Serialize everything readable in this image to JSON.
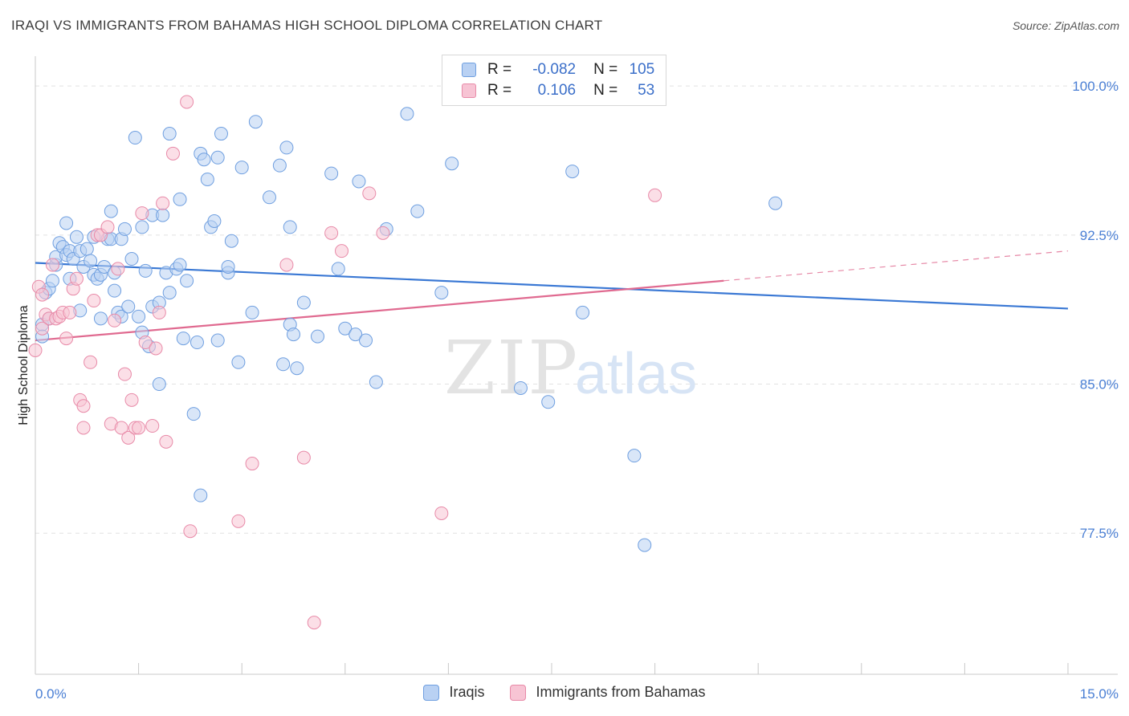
{
  "title": "IRAQI VS IMMIGRANTS FROM BAHAMAS HIGH SCHOOL DIPLOMA CORRELATION CHART",
  "source": "Source: ZipAtlas.com",
  "watermark": {
    "zip": "ZIP",
    "atlas": "atlas"
  },
  "legend": {
    "r_label": "R =",
    "n_label": "N =",
    "rows": [
      {
        "r": "-0.082",
        "n": "105",
        "color": "#6f9fe0",
        "fill": "#b9d1f3"
      },
      {
        "r": "0.106",
        "n": "53",
        "color": "#e88aa8",
        "fill": "#f7c4d4"
      }
    ]
  },
  "chart_data": {
    "type": "scatter",
    "title": "IRAQI VS IMMIGRANTS FROM BAHAMAS HIGH SCHOOL DIPLOMA CORRELATION CHART",
    "xlabel": "",
    "ylabel": "High School Diploma",
    "xlim": [
      0,
      15
    ],
    "ylim": [
      70.4,
      101.5
    ],
    "x_tick_labels": [
      "0.0%",
      "15.0%"
    ],
    "y_ticks": [
      77.5,
      85.0,
      92.5,
      100.0
    ],
    "y_tick_labels": [
      "77.5%",
      "85.0%",
      "92.5%",
      "100.0%"
    ],
    "grid": "horizontal dashed",
    "legend_position": "top-center",
    "series": [
      {
        "name": "Iraqis",
        "color": "#3a78d4",
        "fill": "#b9d1f3",
        "trend": {
          "x": [
            0.0,
            15.0
          ],
          "y": [
            91.1,
            88.8
          ]
        },
        "points": [
          [
            0.1,
            88.0
          ],
          [
            0.1,
            87.4
          ],
          [
            0.15,
            89.6
          ],
          [
            0.2,
            89.8
          ],
          [
            0.2,
            88.3
          ],
          [
            0.25,
            90.2
          ],
          [
            0.3,
            91.0
          ],
          [
            0.3,
            91.4
          ],
          [
            0.35,
            92.1
          ],
          [
            0.4,
            91.9
          ],
          [
            0.45,
            91.5
          ],
          [
            0.45,
            93.1
          ],
          [
            0.5,
            91.7
          ],
          [
            0.5,
            90.3
          ],
          [
            0.55,
            91.3
          ],
          [
            0.6,
            92.4
          ],
          [
            0.65,
            91.7
          ],
          [
            0.65,
            88.7
          ],
          [
            0.7,
            90.9
          ],
          [
            0.75,
            91.8
          ],
          [
            0.8,
            91.2
          ],
          [
            0.85,
            92.4
          ],
          [
            0.85,
            90.5
          ],
          [
            0.9,
            90.3
          ],
          [
            0.95,
            90.5
          ],
          [
            0.95,
            88.3
          ],
          [
            1.0,
            90.9
          ],
          [
            1.05,
            92.3
          ],
          [
            1.1,
            93.7
          ],
          [
            1.1,
            92.3
          ],
          [
            1.15,
            89.7
          ],
          [
            1.15,
            90.6
          ],
          [
            1.2,
            88.6
          ],
          [
            1.25,
            92.3
          ],
          [
            1.25,
            88.4
          ],
          [
            1.3,
            92.8
          ],
          [
            1.35,
            88.9
          ],
          [
            1.4,
            91.3
          ],
          [
            1.45,
            97.4
          ],
          [
            1.5,
            88.4
          ],
          [
            1.55,
            92.9
          ],
          [
            1.55,
            87.6
          ],
          [
            1.6,
            90.7
          ],
          [
            1.65,
            86.9
          ],
          [
            1.7,
            93.5
          ],
          [
            1.7,
            88.9
          ],
          [
            1.8,
            89.1
          ],
          [
            1.8,
            85.0
          ],
          [
            1.85,
            93.5
          ],
          [
            1.9,
            90.6
          ],
          [
            1.95,
            89.6
          ],
          [
            1.95,
            97.6
          ],
          [
            2.05,
            90.8
          ],
          [
            2.1,
            94.3
          ],
          [
            2.1,
            91.0
          ],
          [
            2.15,
            87.3
          ],
          [
            2.2,
            90.2
          ],
          [
            2.3,
            83.5
          ],
          [
            2.35,
            87.1
          ],
          [
            2.4,
            79.4
          ],
          [
            2.4,
            96.6
          ],
          [
            2.45,
            96.3
          ],
          [
            2.5,
            95.3
          ],
          [
            2.55,
            92.9
          ],
          [
            2.6,
            93.2
          ],
          [
            2.65,
            96.4
          ],
          [
            2.65,
            87.2
          ],
          [
            2.7,
            97.6
          ],
          [
            2.8,
            90.6
          ],
          [
            2.8,
            90.9
          ],
          [
            2.85,
            92.2
          ],
          [
            2.95,
            86.1
          ],
          [
            3.0,
            95.9
          ],
          [
            3.15,
            88.6
          ],
          [
            3.2,
            98.2
          ],
          [
            3.4,
            94.4
          ],
          [
            3.55,
            96.0
          ],
          [
            3.6,
            86.0
          ],
          [
            3.65,
            96.9
          ],
          [
            3.7,
            92.9
          ],
          [
            3.7,
            88.0
          ],
          [
            3.75,
            87.5
          ],
          [
            3.8,
            85.8
          ],
          [
            3.9,
            89.1
          ],
          [
            4.1,
            87.4
          ],
          [
            4.3,
            95.6
          ],
          [
            4.4,
            90.8
          ],
          [
            4.5,
            87.8
          ],
          [
            4.65,
            87.5
          ],
          [
            4.7,
            95.2
          ],
          [
            4.8,
            87.2
          ],
          [
            4.95,
            85.1
          ],
          [
            5.1,
            92.8
          ],
          [
            5.4,
            98.6
          ],
          [
            5.55,
            93.7
          ],
          [
            5.9,
            89.6
          ],
          [
            6.05,
            96.1
          ],
          [
            6.55,
            100.4
          ],
          [
            7.05,
            84.8
          ],
          [
            7.45,
            84.1
          ],
          [
            7.8,
            95.7
          ],
          [
            7.95,
            88.6
          ],
          [
            8.7,
            81.4
          ],
          [
            8.85,
            76.9
          ],
          [
            10.75,
            94.1
          ]
        ]
      },
      {
        "name": "Immigrants from Bahamas",
        "color": "#e06a90",
        "fill": "#f7c4d4",
        "trend": {
          "x": [
            0.0,
            10.0
          ],
          "y": [
            87.2,
            90.2
          ],
          "dashed_to": [
            15.0,
            91.7
          ]
        },
        "points": [
          [
            0.0,
            86.7
          ],
          [
            0.05,
            89.9
          ],
          [
            0.1,
            89.5
          ],
          [
            0.15,
            88.5
          ],
          [
            0.2,
            88.3
          ],
          [
            0.25,
            91.0
          ],
          [
            0.3,
            88.3
          ],
          [
            0.35,
            88.4
          ],
          [
            0.4,
            88.6
          ],
          [
            0.45,
            87.3
          ],
          [
            0.5,
            88.6
          ],
          [
            0.55,
            89.8
          ],
          [
            0.6,
            90.3
          ],
          [
            0.65,
            84.2
          ],
          [
            0.7,
            83.9
          ],
          [
            0.7,
            82.8
          ],
          [
            0.8,
            86.1
          ],
          [
            0.85,
            89.2
          ],
          [
            0.9,
            92.5
          ],
          [
            0.95,
            92.5
          ],
          [
            1.05,
            92.9
          ],
          [
            1.1,
            83.0
          ],
          [
            1.15,
            88.2
          ],
          [
            1.2,
            90.8
          ],
          [
            1.25,
            82.8
          ],
          [
            1.3,
            85.5
          ],
          [
            1.35,
            82.3
          ],
          [
            1.4,
            84.2
          ],
          [
            1.45,
            82.8
          ],
          [
            1.5,
            82.8
          ],
          [
            1.55,
            93.6
          ],
          [
            1.6,
            87.1
          ],
          [
            1.7,
            82.9
          ],
          [
            1.75,
            86.8
          ],
          [
            1.8,
            88.6
          ],
          [
            1.85,
            94.1
          ],
          [
            1.9,
            82.1
          ],
          [
            2.0,
            96.6
          ],
          [
            2.2,
            99.2
          ],
          [
            2.25,
            77.6
          ],
          [
            2.95,
            78.1
          ],
          [
            3.15,
            81.0
          ],
          [
            3.65,
            91.0
          ],
          [
            3.9,
            81.3
          ],
          [
            4.05,
            73.0
          ],
          [
            4.3,
            92.6
          ],
          [
            4.45,
            91.7
          ],
          [
            4.85,
            94.6
          ],
          [
            5.05,
            92.6
          ],
          [
            5.9,
            78.5
          ],
          [
            6.65,
            99.8
          ],
          [
            9.0,
            94.5
          ],
          [
            0.1,
            87.8
          ]
        ]
      }
    ]
  }
}
